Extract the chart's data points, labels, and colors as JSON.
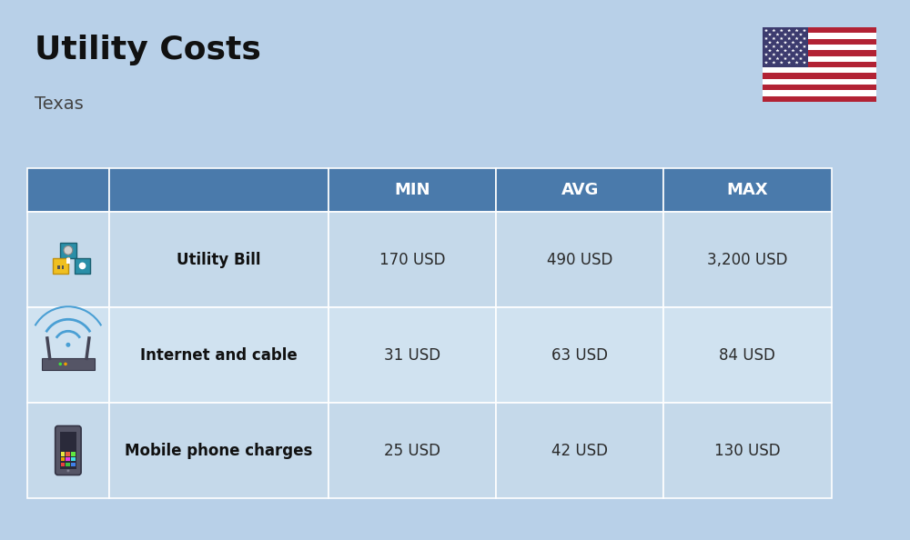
{
  "title": "Utility Costs",
  "subtitle": "Texas",
  "background_color": "#b8d0e8",
  "header_bg_color": "#4a7aab",
  "header_text_color": "#ffffff",
  "row_bg_color_even": "#c5d9ea",
  "row_bg_color_odd": "#d0e2f0",
  "cell_text_color": "#2a2a2a",
  "label_text_color": "#111111",
  "title_color": "#111111",
  "subtitle_color": "#444444",
  "columns": [
    "",
    "",
    "MIN",
    "AVG",
    "MAX"
  ],
  "rows": [
    {
      "label": "Utility Bill",
      "min": "170 USD",
      "avg": "490 USD",
      "max": "3,200 USD"
    },
    {
      "label": "Internet and cable",
      "min": "31 USD",
      "avg": "63 USD",
      "max": "84 USD"
    },
    {
      "label": "Mobile phone charges",
      "min": "25 USD",
      "avg": "42 USD",
      "max": "130 USD"
    }
  ],
  "figsize": [
    10.0,
    5.94
  ],
  "dpi": 100
}
